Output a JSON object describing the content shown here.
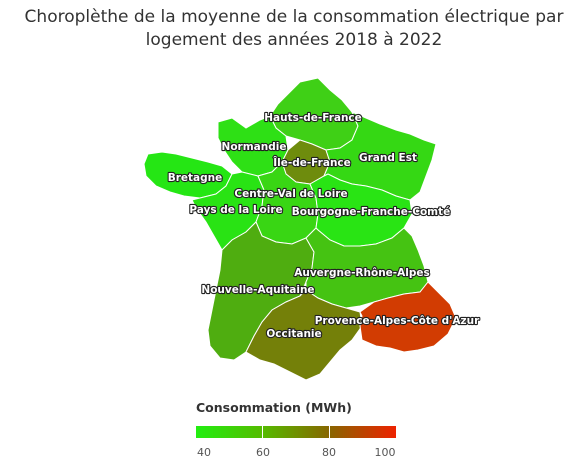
{
  "title": "Choroplèthe de la moyenne de la consommation électrique par logement des années 2018 à 2022",
  "legend": {
    "title": "Consommation (MWh)",
    "min": 40,
    "max": 100,
    "ticks": [
      "40",
      "60",
      "80",
      "100"
    ],
    "colors": [
      "#22ee11",
      "#55bb00",
      "#886600",
      "#ee2200"
    ]
  },
  "regions": [
    {
      "key": "hauts",
      "name": "Hauts-de-France",
      "color": "#3fd016"
    },
    {
      "key": "normandie",
      "name": "Normandie",
      "color": "#2ee015"
    },
    {
      "key": "idf",
      "name": "Île-de-France",
      "color": "#6e8c0d"
    },
    {
      "key": "grandest",
      "name": "Grand Est",
      "color": "#35d814"
    },
    {
      "key": "bretagne",
      "name": "Bretagne",
      "color": "#25e614"
    },
    {
      "key": "cvl",
      "name": "Centre-Val de Loire",
      "color": "#39d614"
    },
    {
      "key": "pdl",
      "name": "Pays de la Loire",
      "color": "#29e314"
    },
    {
      "key": "bfc",
      "name": "Bourgogne-Franche-Comté",
      "color": "#29e414"
    },
    {
      "key": "ara",
      "name": "Auvergne-Rhône-Alpes",
      "color": "#45c312"
    },
    {
      "key": "naq",
      "name": "Nouvelle-Aquitaine",
      "color": "#4fad10"
    },
    {
      "key": "occ",
      "name": "Occitanie",
      "color": "#748009"
    },
    {
      "key": "paca",
      "name": "Provence-Alpes-Côte d'Azur",
      "color": "#d23c02"
    }
  ]
}
